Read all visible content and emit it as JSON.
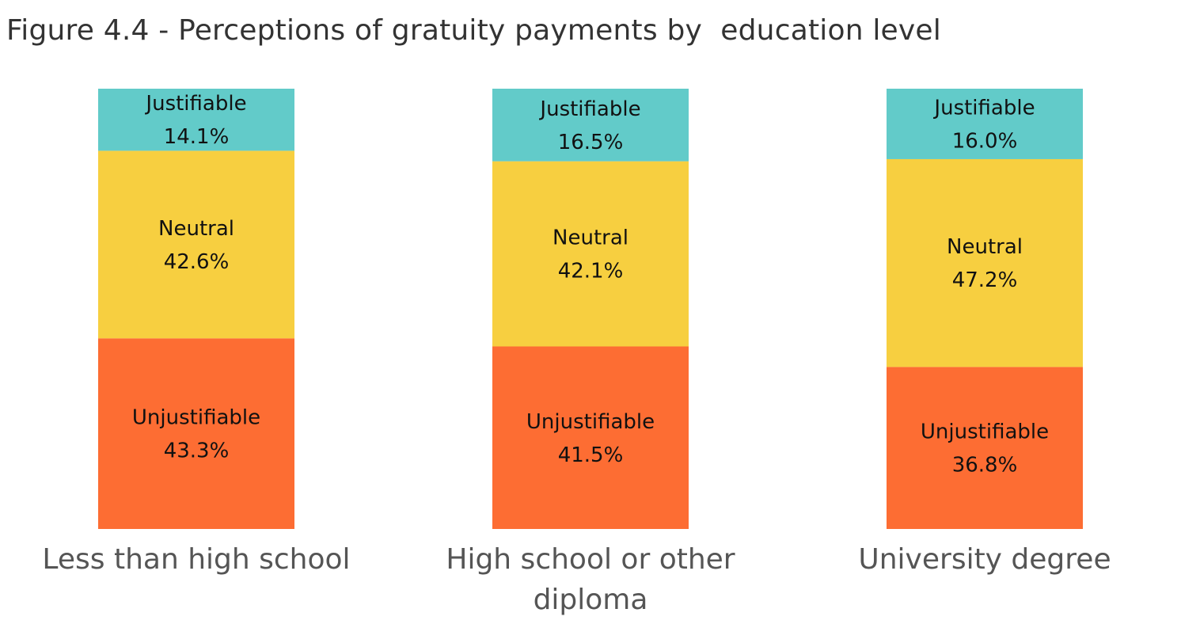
{
  "title": "Figure 4.4 - Perceptions of gratuity payments by  education level",
  "chart_data": {
    "type": "bar",
    "stacked": true,
    "normalized": true,
    "title": "Figure 4.4 - Perceptions of gratuity payments by  education level",
    "xlabel": "",
    "ylabel": "",
    "ylim": [
      0,
      100
    ],
    "grid": false,
    "legend": "none",
    "categories": [
      [
        "Less than high school"
      ],
      [
        "High school or other",
        "diploma"
      ],
      [
        "University degree"
      ]
    ],
    "series": [
      {
        "name": "Unjustifiable",
        "color": "#fd6d33",
        "values": [
          43.3,
          41.5,
          36.8
        ],
        "labels": [
          "43.3%",
          "41.5%",
          "36.8%"
        ]
      },
      {
        "name": "Neutral",
        "color": "#f7cf40",
        "values": [
          42.6,
          42.1,
          47.2
        ],
        "labels": [
          "42.6%",
          "42.1%",
          "47.2%"
        ]
      },
      {
        "name": "Justifiable",
        "color": "#62cbc9",
        "values": [
          14.1,
          16.5,
          16.0
        ],
        "labels": [
          "14.1%",
          "16.5%",
          "16.0%"
        ]
      }
    ]
  }
}
